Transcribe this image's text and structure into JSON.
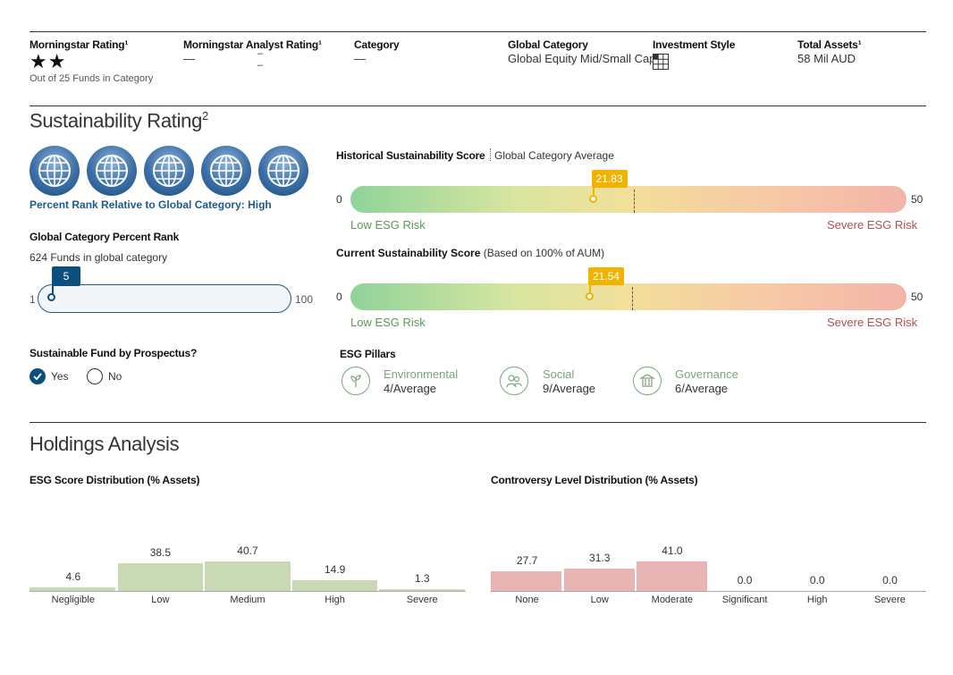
{
  "top": {
    "rating_label": "Morningstar Rating¹",
    "rating_stars": "★★",
    "rating_note": "Out of 25 Funds in Category",
    "analyst_label": "Morningstar Analyst Rating¹",
    "analyst_value": "—",
    "analyst_value2": "–",
    "analyst_value3": "–",
    "category_label": "Category",
    "category_value": "—",
    "global_category_label": "Global Category",
    "global_category_value": "Global Equity Mid/Small Cap",
    "investment_style_label": "Investment Style",
    "total_assets_label": "Total Assets¹",
    "total_assets_value": "58 Mil AUD"
  },
  "sustainability": {
    "title": "Sustainability Rating",
    "title_sup": "2",
    "globe_count": 5,
    "percent_rank_text": "Percent Rank Relative to Global Category: High",
    "gcpr_label": "Global Category Percent Rank",
    "gcpr_funds": "624 Funds in global category",
    "rank_value": "5",
    "rank_min": "1",
    "rank_max": "100",
    "sfp_label": "Sustainable Fund by Prospectus?",
    "yes_label": "Yes",
    "no_label": "No",
    "yes_selected": true
  },
  "historical": {
    "label": "Historical Sustainability Score",
    "sub_label": "Global Category Average",
    "min": "0",
    "max": "50",
    "score": "21.83",
    "score_value": 21.83,
    "category_avg_value": 25.5,
    "low_label": "Low ESG Risk",
    "high_label": "Severe ESG Risk"
  },
  "current": {
    "label": "Current Sustainability Score",
    "sub_label": "(Based on 100% of AUM)",
    "min": "0",
    "max": "50",
    "score": "21.54",
    "score_value": 21.54,
    "category_avg_value": 25.3,
    "low_label": "Low ESG Risk",
    "high_label": "Severe ESG Risk"
  },
  "pillars": {
    "label": "ESG Pillars",
    "env_name": "Environmental",
    "env_value": "4/Average",
    "soc_name": "Social",
    "soc_value": "9/Average",
    "gov_name": "Governance",
    "gov_value": "6/Average"
  },
  "holdings": {
    "title": "Holdings Analysis",
    "esg_dist_label": "ESG Score Distribution (% Assets)",
    "controversy_label": "Controversy Level Distribution (% Assets)"
  },
  "colors": {
    "esg_bar": "#c9d9b4",
    "controversy_bar": "#e8b4b4",
    "globe_blue": "#3a6ea5",
    "flag": "#f0b400"
  },
  "chart_data": [
    {
      "type": "bar",
      "title": "ESG Score Distribution (% Assets)",
      "categories": [
        "Negligible",
        "Low",
        "Medium",
        "High",
        "Severe"
      ],
      "values": [
        4.6,
        38.5,
        40.7,
        14.9,
        1.3
      ],
      "value_labels": [
        "4.6",
        "38.5",
        "40.7",
        "14.9",
        "1.3"
      ],
      "ylim": [
        0,
        42
      ]
    },
    {
      "type": "bar",
      "title": "Controversy Level Distribution (% Assets)",
      "categories": [
        "None",
        "Low",
        "Moderate",
        "Significant",
        "High",
        "Severe"
      ],
      "values": [
        27.7,
        31.3,
        41.0,
        0.0,
        0.0,
        0.0
      ],
      "value_labels": [
        "27.7",
        "31.3",
        "41.0",
        "0.0",
        "0.0",
        "0.0"
      ],
      "ylim": [
        0,
        42
      ]
    }
  ]
}
